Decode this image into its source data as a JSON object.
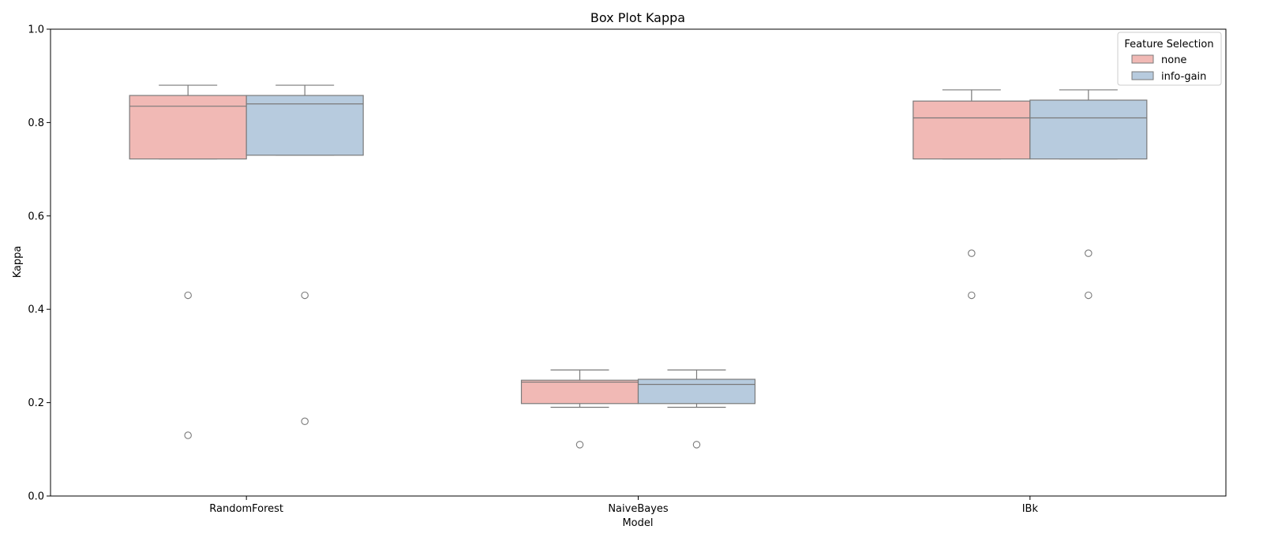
{
  "chart_data": {
    "type": "box",
    "title": "Box Plot Kappa",
    "xlabel": "Model",
    "ylabel": "Kappa",
    "ylim": [
      0.0,
      1.0
    ],
    "yticks": [
      "0.0",
      "0.2",
      "0.4",
      "0.6",
      "0.8",
      "1.0"
    ],
    "categories": [
      "RandomForest",
      "NaiveBayes",
      "IBk"
    ],
    "grid": false,
    "legend": {
      "title": "Feature Selection",
      "placement": "top-right"
    },
    "series": [
      {
        "name": "none",
        "color": "#f1b9b5",
        "boxes": [
          {
            "whisker_low": 0.722,
            "q1": 0.722,
            "median": 0.835,
            "q3": 0.858,
            "whisker_high": 0.88,
            "outliers": [
              0.43,
              0.13
            ]
          },
          {
            "whisker_low": 0.19,
            "q1": 0.198,
            "median": 0.244,
            "q3": 0.248,
            "whisker_high": 0.27,
            "outliers": [
              0.11
            ]
          },
          {
            "whisker_low": 0.722,
            "q1": 0.722,
            "median": 0.81,
            "q3": 0.846,
            "whisker_high": 0.87,
            "outliers": [
              0.52,
              0.43
            ]
          }
        ]
      },
      {
        "name": "info-gain",
        "color": "#b7cbde",
        "boxes": [
          {
            "whisker_low": 0.73,
            "q1": 0.73,
            "median": 0.84,
            "q3": 0.858,
            "whisker_high": 0.88,
            "outliers": [
              0.43,
              0.16
            ]
          },
          {
            "whisker_low": 0.19,
            "q1": 0.198,
            "median": 0.239,
            "q3": 0.25,
            "whisker_high": 0.27,
            "outliers": [
              0.11
            ]
          },
          {
            "whisker_low": 0.722,
            "q1": 0.722,
            "median": 0.81,
            "q3": 0.848,
            "whisker_high": 0.87,
            "outliers": [
              0.52,
              0.43
            ]
          }
        ]
      }
    ]
  }
}
